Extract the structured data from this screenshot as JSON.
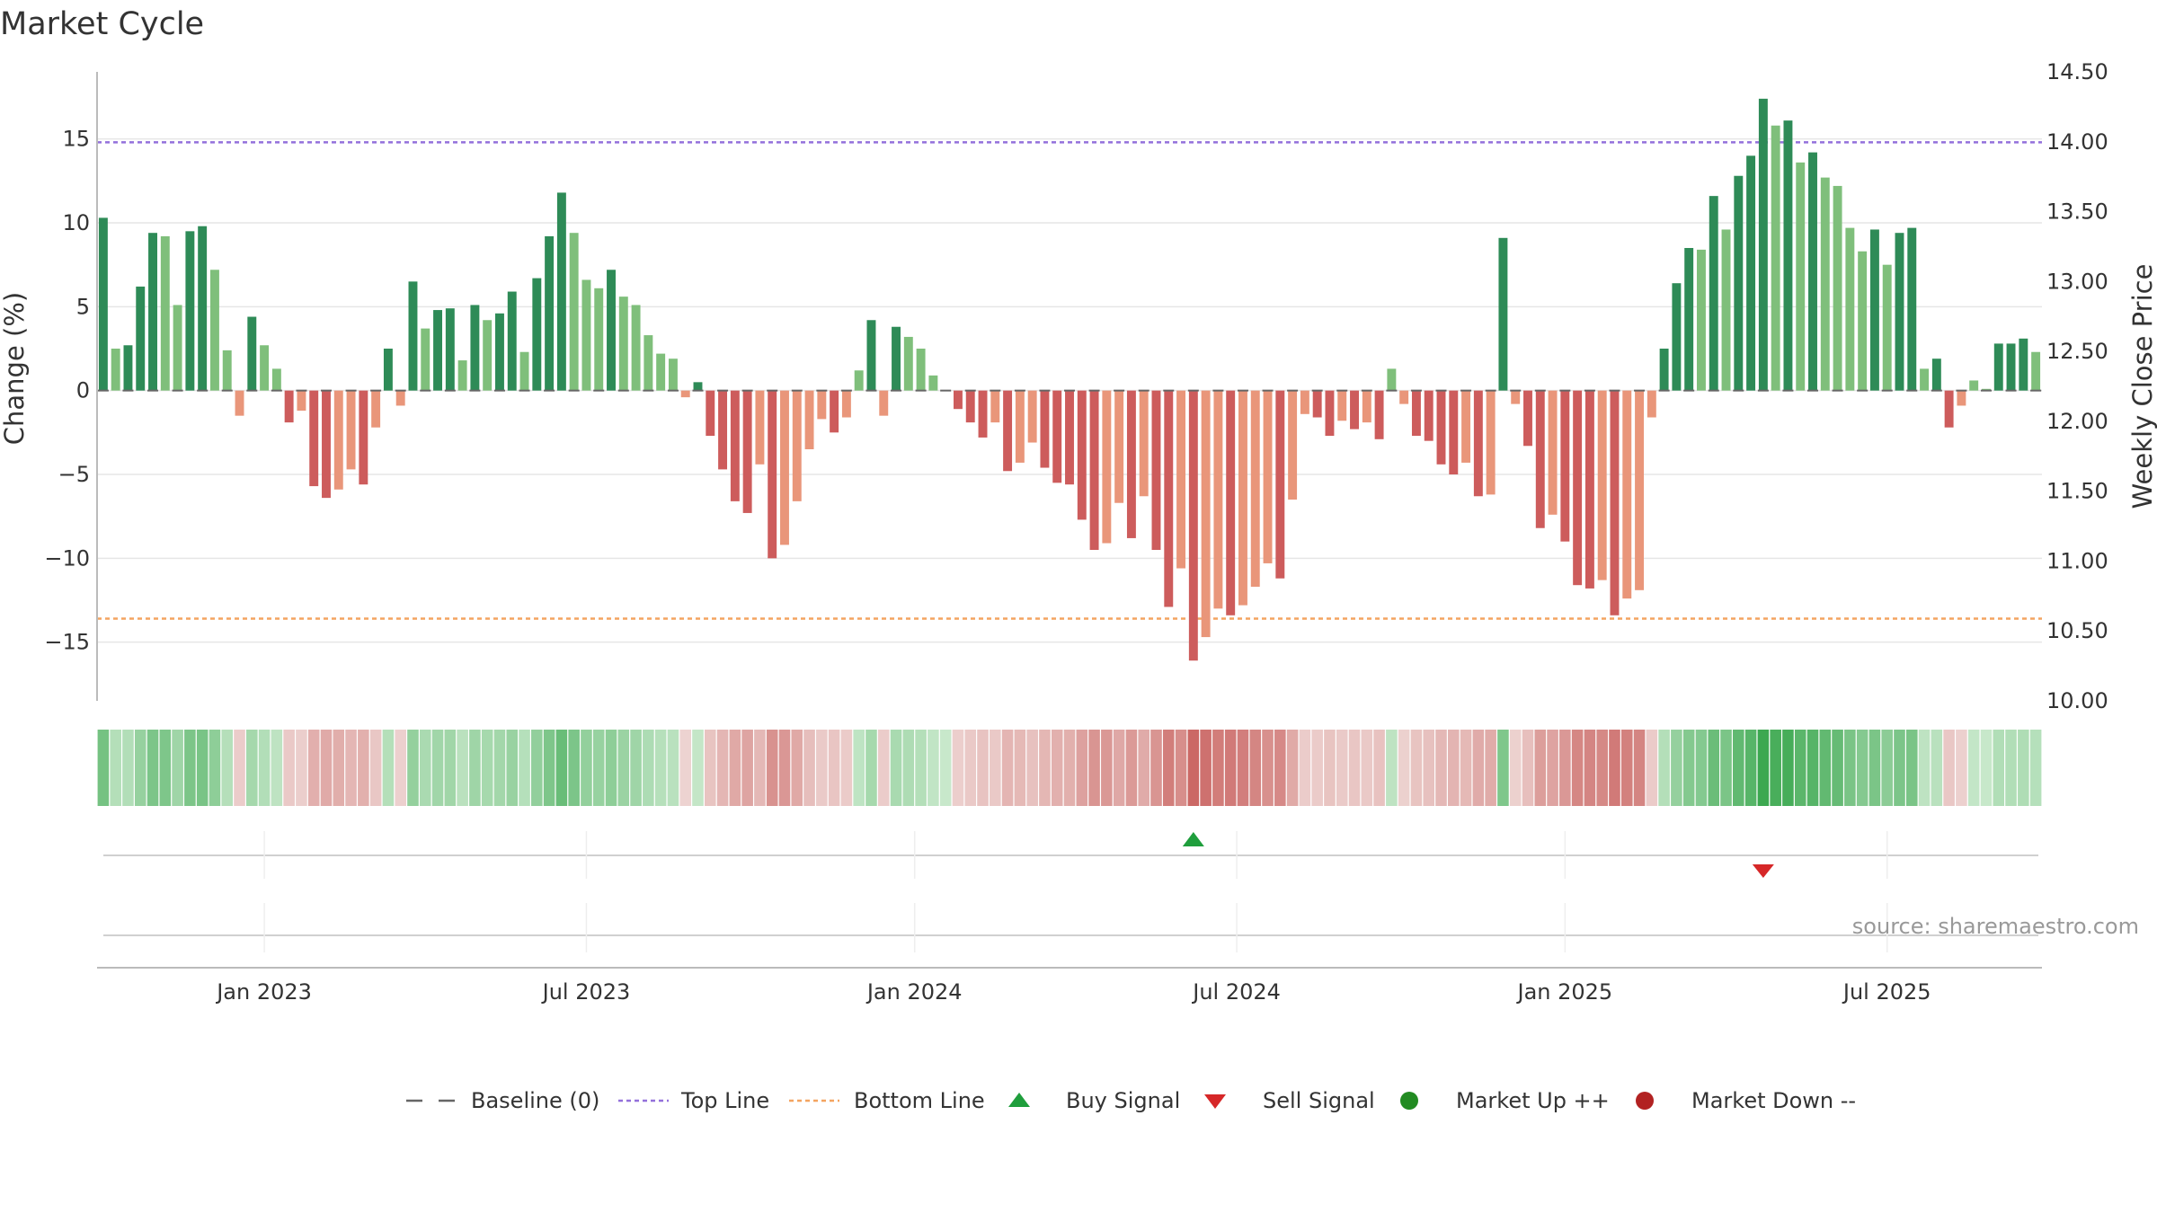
{
  "chart_data": {
    "type": "bar",
    "title": "Market Cycle",
    "ylabel": "Change (%)",
    "y2label": "Weekly Close Price",
    "ylim": [
      -18.5,
      19
    ],
    "y2lim": [
      10.0,
      14.5
    ],
    "yticks": [
      -15,
      -10,
      -5,
      0,
      5,
      10,
      15
    ],
    "yticklabels": [
      "−15",
      "−10",
      "−5",
      "0",
      "5",
      "10",
      "15"
    ],
    "y2ticks": [
      "14.50",
      "14.00",
      "13.50",
      "13.00",
      "12.50",
      "12.00",
      "11.50",
      "11.00",
      "10.50",
      "10.00"
    ],
    "xticks": [
      {
        "label": "Jan 2023",
        "week": 13.5
      },
      {
        "label": "Jul 2023",
        "week": 39.5
      },
      {
        "label": "Jan 2024",
        "week": 66
      },
      {
        "label": "Jul 2024",
        "week": 92
      },
      {
        "label": "Jan 2025",
        "week": 118.5
      },
      {
        "label": "Jul 2025",
        "week": 144.5
      }
    ],
    "top_line": 14.8,
    "bottom_line": -13.6,
    "values": [
      10.3,
      2.5,
      2.7,
      6.2,
      9.4,
      9.2,
      5.1,
      9.5,
      9.8,
      7.2,
      2.4,
      -1.5,
      4.4,
      2.7,
      1.3,
      -1.9,
      -1.2,
      -5.7,
      -6.4,
      -5.9,
      -4.7,
      -5.6,
      -2.2,
      2.5,
      -0.9,
      6.5,
      3.7,
      4.8,
      4.9,
      1.8,
      5.1,
      4.2,
      4.6,
      5.9,
      2.3,
      6.7,
      9.2,
      11.8,
      9.4,
      6.6,
      6.1,
      7.2,
      5.6,
      5.1,
      3.3,
      2.2,
      1.9,
      -0.4,
      0.5,
      -2.7,
      -4.7,
      -6.6,
      -7.3,
      -4.4,
      -10.0,
      -9.2,
      -6.6,
      -3.5,
      -1.7,
      -2.5,
      -1.6,
      1.2,
      4.2,
      -1.5,
      3.8,
      3.2,
      2.5,
      0.9,
      0.0,
      -1.1,
      -1.9,
      -2.8,
      -1.9,
      -4.8,
      -4.3,
      -3.1,
      -4.6,
      -5.5,
      -5.6,
      -7.7,
      -9.5,
      -9.1,
      -6.7,
      -8.8,
      -6.3,
      -9.5,
      -12.9,
      -10.6,
      -16.1,
      -14.7,
      -13.0,
      -13.4,
      -12.8,
      -11.7,
      -10.3,
      -11.2,
      -6.5,
      -1.4,
      -1.6,
      -2.7,
      -1.8,
      -2.3,
      -1.9,
      -2.9,
      1.3,
      -0.8,
      -2.7,
      -3.0,
      -4.4,
      -5.0,
      -4.3,
      -6.3,
      -6.2,
      9.1,
      -0.8,
      -3.3,
      -8.2,
      -7.4,
      -9.0,
      -11.6,
      -11.8,
      -11.3,
      -13.4,
      -12.4,
      -11.9,
      -1.6,
      2.5,
      6.4,
      8.5,
      8.4,
      11.6,
      9.6,
      12.8,
      14.0,
      17.4,
      15.8,
      16.1,
      13.6,
      14.2,
      12.7,
      12.2,
      9.7,
      8.3,
      9.6,
      7.5,
      9.4,
      9.7,
      1.3,
      1.9,
      -2.2,
      -0.9,
      0.6,
      0.1,
      2.8,
      2.8,
      3.1,
      2.3
    ],
    "buy_signals": [
      {
        "week": 88.5,
        "label": "Buy Signal"
      }
    ],
    "sell_signals": [
      {
        "week": 134.5,
        "label": "Sell Signal"
      }
    ],
    "legend": [
      "Baseline (0)",
      "Top Line",
      "Bottom Line",
      "Buy Signal",
      "Sell Signal",
      "Market Up ++",
      "Market Down --"
    ],
    "source": "source: sharemaestro.com"
  },
  "colors": {
    "up_strong": "#2e8b57",
    "up_weak": "#7fbf7b",
    "down_strong": "#cd5c5c",
    "down_weak": "#e9967a",
    "top_line": "#9370db",
    "bottom_line": "#f4a460",
    "buy": "#1f9e3c",
    "sell": "#d62728",
    "market_up": "#228b22",
    "market_down": "#b22222"
  }
}
